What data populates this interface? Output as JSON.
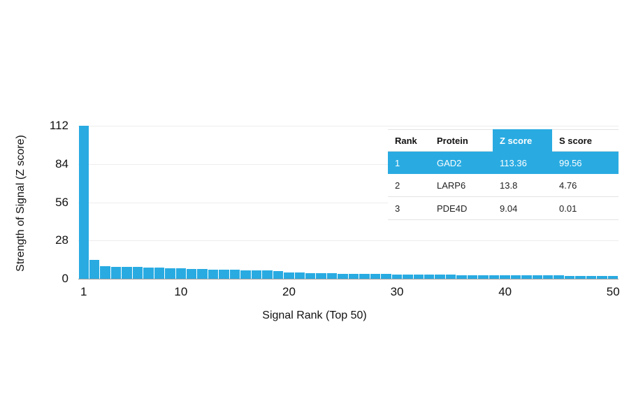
{
  "colors": {
    "bar": "#29abe2",
    "highlight": "#29abe2",
    "highlight_text": "#ffffff"
  },
  "chart_data": {
    "type": "bar",
    "title": "",
    "xlabel": "Signal Rank (Top 50)",
    "ylabel": "Strength of Signal (Z score)",
    "ylim": [
      0,
      112
    ],
    "y_ticks": [
      0,
      28,
      56,
      84,
      112
    ],
    "x_ticks": [
      1,
      10,
      20,
      30,
      40,
      50
    ],
    "grid": "horizontal",
    "legend": "none",
    "values": [
      113.36,
      13.8,
      9.04,
      8.8,
      8.6,
      8.5,
      8.3,
      8.1,
      7.9,
      7.7,
      7.4,
      7.1,
      6.9,
      6.7,
      6.5,
      6.3,
      6.1,
      5.9,
      5.7,
      4.6,
      4.4,
      4.2,
      4.0,
      3.9,
      3.8,
      3.7,
      3.6,
      3.5,
      3.4,
      3.3,
      3.2,
      3.1,
      3.0,
      2.9,
      2.9,
      2.8,
      2.8,
      2.7,
      2.7,
      2.6,
      2.6,
      2.5,
      2.5,
      2.4,
      2.4,
      2.3,
      2.3,
      2.2,
      2.2,
      2.1
    ]
  },
  "table": {
    "headers": [
      "Rank",
      "Protein",
      "Z score",
      "S score"
    ],
    "header_highlight_index": 2,
    "rows": [
      {
        "cells": [
          "1",
          "GAD2",
          "113.36",
          "99.56"
        ],
        "highlight": true
      },
      {
        "cells": [
          "2",
          "LARP6",
          "13.8",
          "4.76"
        ],
        "highlight": false
      },
      {
        "cells": [
          "3",
          "PDE4D",
          "9.04",
          "0.01"
        ],
        "highlight": false
      }
    ]
  }
}
